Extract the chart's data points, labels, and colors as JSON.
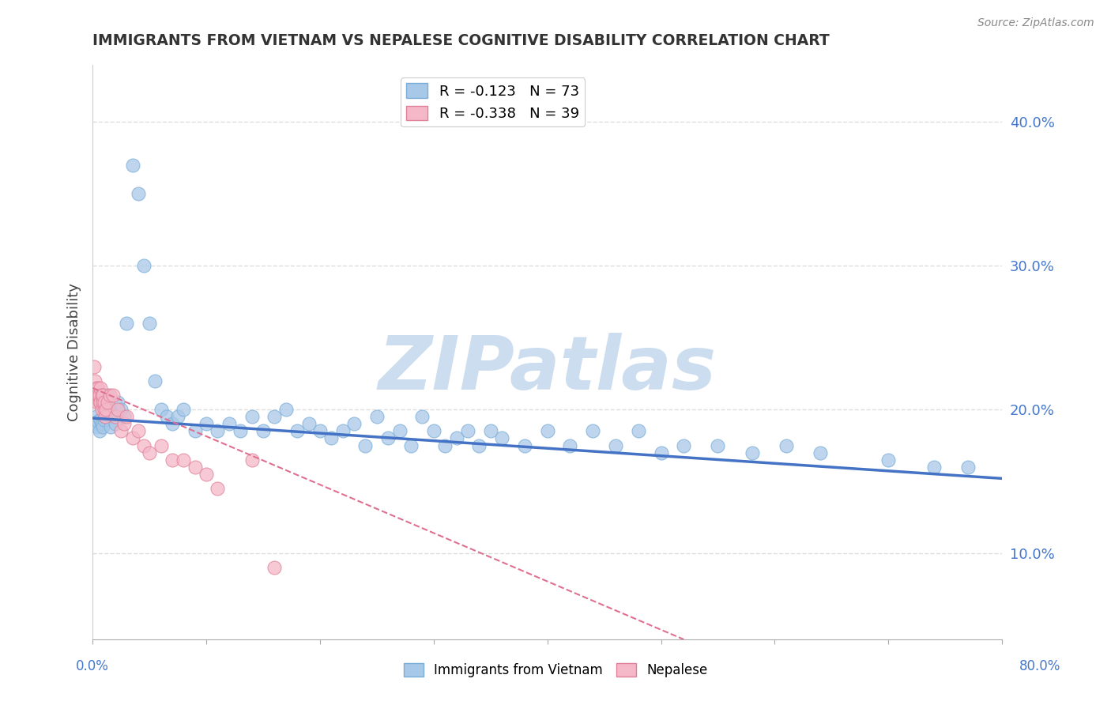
{
  "title": "IMMIGRANTS FROM VIETNAM VS NEPALESE COGNITIVE DISABILITY CORRELATION CHART",
  "source": "Source: ZipAtlas.com",
  "ylabel": "Cognitive Disability",
  "xmin": 0.0,
  "xmax": 0.8,
  "ymin": 0.04,
  "ymax": 0.44,
  "yticks": [
    0.1,
    0.2,
    0.3,
    0.4
  ],
  "ytick_labels": [
    "10.0%",
    "20.0%",
    "30.0%",
    "40.0%"
  ],
  "legend_entries": [
    {
      "label": "R = -0.123   N = 73",
      "facecolor": "#a8c8e8",
      "edgecolor": "#7aaed8"
    },
    {
      "label": "R = -0.338   N = 39",
      "facecolor": "#f4b8c8",
      "edgecolor": "#e08098"
    }
  ],
  "bottom_legend": [
    {
      "label": "Immigrants from Vietnam",
      "facecolor": "#a8c8e8",
      "edgecolor": "#7aaed8"
    },
    {
      "label": "Nepalese",
      "facecolor": "#f4b8c8",
      "edgecolor": "#e08098"
    }
  ],
  "series_vietnam": {
    "facecolor": "#a8c8e8",
    "edgecolor": "#7aaed8",
    "x": [
      0.002,
      0.003,
      0.004,
      0.005,
      0.006,
      0.007,
      0.008,
      0.009,
      0.01,
      0.011,
      0.012,
      0.013,
      0.015,
      0.016,
      0.018,
      0.02,
      0.022,
      0.025,
      0.028,
      0.03,
      0.035,
      0.04,
      0.045,
      0.05,
      0.055,
      0.06,
      0.065,
      0.07,
      0.075,
      0.08,
      0.09,
      0.1,
      0.11,
      0.12,
      0.13,
      0.14,
      0.15,
      0.16,
      0.17,
      0.18,
      0.19,
      0.2,
      0.21,
      0.22,
      0.23,
      0.24,
      0.25,
      0.26,
      0.27,
      0.28,
      0.29,
      0.3,
      0.31,
      0.32,
      0.33,
      0.34,
      0.35,
      0.36,
      0.38,
      0.4,
      0.42,
      0.44,
      0.46,
      0.48,
      0.5,
      0.52,
      0.55,
      0.58,
      0.61,
      0.64,
      0.7,
      0.74,
      0.77
    ],
    "y": [
      0.19,
      0.195,
      0.188,
      0.192,
      0.185,
      0.193,
      0.19,
      0.188,
      0.193,
      0.195,
      0.205,
      0.21,
      0.2,
      0.188,
      0.195,
      0.19,
      0.205,
      0.2,
      0.195,
      0.26,
      0.37,
      0.35,
      0.3,
      0.26,
      0.22,
      0.2,
      0.195,
      0.19,
      0.195,
      0.2,
      0.185,
      0.19,
      0.185,
      0.19,
      0.185,
      0.195,
      0.185,
      0.195,
      0.2,
      0.185,
      0.19,
      0.185,
      0.18,
      0.185,
      0.19,
      0.175,
      0.195,
      0.18,
      0.185,
      0.175,
      0.195,
      0.185,
      0.175,
      0.18,
      0.185,
      0.175,
      0.185,
      0.18,
      0.175,
      0.185,
      0.175,
      0.185,
      0.175,
      0.185,
      0.17,
      0.175,
      0.175,
      0.17,
      0.175,
      0.17,
      0.165,
      0.16,
      0.16
    ]
  },
  "series_nepalese": {
    "facecolor": "#f4b8c8",
    "edgecolor": "#e08098",
    "x": [
      0.001,
      0.002,
      0.003,
      0.004,
      0.004,
      0.005,
      0.005,
      0.006,
      0.006,
      0.007,
      0.007,
      0.008,
      0.008,
      0.009,
      0.009,
      0.01,
      0.01,
      0.011,
      0.012,
      0.013,
      0.015,
      0.018,
      0.02,
      0.022,
      0.025,
      0.028,
      0.03,
      0.035,
      0.04,
      0.045,
      0.05,
      0.06,
      0.07,
      0.08,
      0.09,
      0.1,
      0.11,
      0.14,
      0.16
    ],
    "y": [
      0.23,
      0.22,
      0.215,
      0.21,
      0.205,
      0.215,
      0.21,
      0.205,
      0.21,
      0.215,
      0.205,
      0.21,
      0.2,
      0.205,
      0.21,
      0.2,
      0.205,
      0.195,
      0.2,
      0.205,
      0.21,
      0.21,
      0.195,
      0.2,
      0.185,
      0.19,
      0.195,
      0.18,
      0.185,
      0.175,
      0.17,
      0.175,
      0.165,
      0.165,
      0.16,
      0.155,
      0.145,
      0.165,
      0.09
    ]
  },
  "trend_vietnam_color": "#4472c4",
  "trend_nepalese_color": "#e07090",
  "trend_vietnam_x_start": 0.0,
  "trend_vietnam_x_end": 0.8,
  "trend_vietnam_y_start": 0.194,
  "trend_vietnam_y_end": 0.152,
  "trend_nepalese_x_start": 0.0,
  "trend_nepalese_x_end": 0.52,
  "trend_nepalese_y_start": 0.215,
  "trend_nepalese_y_end": 0.04,
  "watermark_text": "ZIPatlas",
  "watermark_color": "#ccddf0",
  "background_color": "#ffffff",
  "grid_color": "#dddddd"
}
